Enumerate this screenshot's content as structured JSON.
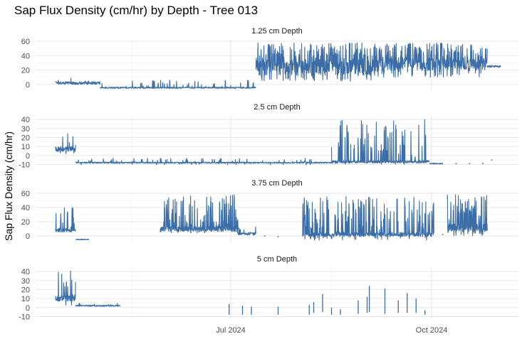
{
  "chart_data": {
    "type": "line",
    "title": "Sap Flux Density (cm/hr) by Depth - Tree 013",
    "ylabel": "Sap Flux Density (cm/hr)",
    "xlabel": "",
    "x_ticks": [
      "Jul 2024",
      "Oct 2024"
    ],
    "series_color": "#3b6ea8",
    "grid": true,
    "panels": [
      {
        "name": "1.25 cm Depth",
        "ylim": [
          -8,
          62
        ],
        "yticks": [
          0,
          20,
          40,
          60
        ],
        "segments": [
          {
            "start": 0.0,
            "end": 0.1,
            "base": 2,
            "amp": 7,
            "spikes": 0.03,
            "spike_to": 12,
            "noise": 4
          },
          {
            "start": 0.1,
            "end": 0.45,
            "base": -4.5,
            "amp": 1.5,
            "spikes": 0.08,
            "spike_to": 6,
            "noise": 2
          },
          {
            "start": 0.45,
            "end": 0.62,
            "base": 25,
            "amp": 20,
            "spikes": 0.45,
            "spike_to": 58,
            "noise": 18
          },
          {
            "start": 0.62,
            "end": 0.72,
            "base": 22,
            "amp": 18,
            "spikes": 0.5,
            "spike_to": 58,
            "noise": 16
          },
          {
            "start": 0.72,
            "end": 0.97,
            "base": 28,
            "amp": 18,
            "spikes": 0.45,
            "spike_to": 58,
            "noise": 16
          },
          {
            "start": 0.97,
            "end": 1.0,
            "base": 25,
            "amp": 4,
            "spikes": 0.0,
            "spike_to": 30,
            "noise": 3
          }
        ]
      },
      {
        "name": "2.5 cm Depth",
        "ylim": [
          -12,
          44
        ],
        "yticks": [
          -10,
          0,
          10,
          20,
          30,
          40
        ],
        "segments": [
          {
            "start": 0.0,
            "end": 0.045,
            "base": 7,
            "amp": 6,
            "spikes": 0.12,
            "spike_to": 28,
            "noise": 6
          },
          {
            "start": 0.045,
            "end": 0.62,
            "base": -8,
            "amp": 2.5,
            "spikes": 0.05,
            "spike_to": -3,
            "noise": 1.5
          },
          {
            "start": 0.62,
            "end": 0.84,
            "base": -7,
            "amp": 3,
            "spikes": 0.18,
            "spike_to": 40,
            "noise": 3
          },
          {
            "start": 0.84,
            "end": 0.87,
            "base": -9,
            "amp": 1,
            "spikes": 0.0,
            "spike_to": 0,
            "noise": 1
          }
        ],
        "dots": [
          [
            0.9,
            -9
          ],
          [
            0.93,
            -9
          ],
          [
            0.96,
            -9
          ],
          [
            0.98,
            -5
          ]
        ]
      },
      {
        "name": "3.75 cm Depth",
        "ylim": [
          -9,
          62
        ],
        "yticks": [
          0,
          20,
          40,
          60
        ],
        "segments": [
          {
            "start": 0.0,
            "end": 0.045,
            "base": 8,
            "amp": 7,
            "spikes": 0.15,
            "spike_to": 40,
            "noise": 5
          },
          {
            "start": 0.045,
            "end": 0.075,
            "base": -5,
            "amp": 2,
            "spikes": 0.0,
            "spike_to": 0,
            "noise": 1
          },
          {
            "start": 0.235,
            "end": 0.41,
            "base": 10,
            "amp": 6,
            "spikes": 0.3,
            "spike_to": 58,
            "noise": 8
          },
          {
            "start": 0.41,
            "end": 0.45,
            "base": 3,
            "amp": 3,
            "spikes": 0.1,
            "spike_to": 18,
            "noise": 3
          },
          {
            "start": 0.555,
            "end": 0.85,
            "base": 2,
            "amp": 8,
            "spikes": 0.25,
            "spike_to": 56,
            "noise": 6
          },
          {
            "start": 0.88,
            "end": 0.97,
            "base": 12,
            "amp": 12,
            "spikes": 0.35,
            "spike_to": 58,
            "noise": 10
          }
        ],
        "dots": [
          [
            0.47,
            0
          ],
          [
            0.5,
            -1
          ],
          [
            0.87,
            2
          ]
        ]
      },
      {
        "name": "5 cm Depth",
        "ylim": [
          -12,
          44
        ],
        "yticks": [
          -10,
          0,
          10,
          20,
          30,
          40
        ],
        "segments": [
          {
            "start": 0.0,
            "end": 0.045,
            "base": 10,
            "amp": 8,
            "spikes": 0.15,
            "spike_to": 42,
            "noise": 6
          },
          {
            "start": 0.045,
            "end": 0.145,
            "base": 2,
            "amp": 2,
            "spikes": 0.05,
            "spike_to": 5,
            "noise": 1.5
          }
        ],
        "spikes": [
          [
            0.39,
            -8,
            4
          ],
          [
            0.42,
            -8,
            2
          ],
          [
            0.44,
            -8,
            1
          ],
          [
            0.5,
            -8,
            1
          ],
          [
            0.57,
            -8,
            3
          ],
          [
            0.58,
            -6,
            6
          ],
          [
            0.6,
            -5,
            15
          ],
          [
            0.62,
            -8,
            0
          ],
          [
            0.64,
            -8,
            -2
          ],
          [
            0.68,
            -7,
            8
          ],
          [
            0.7,
            -6,
            12
          ],
          [
            0.705,
            -5,
            24
          ],
          [
            0.74,
            -7,
            21
          ],
          [
            0.77,
            -6,
            8
          ],
          [
            0.79,
            -6,
            16
          ],
          [
            0.81,
            -6,
            10
          ],
          [
            0.83,
            -8,
            -3
          ]
        ]
      }
    ]
  }
}
